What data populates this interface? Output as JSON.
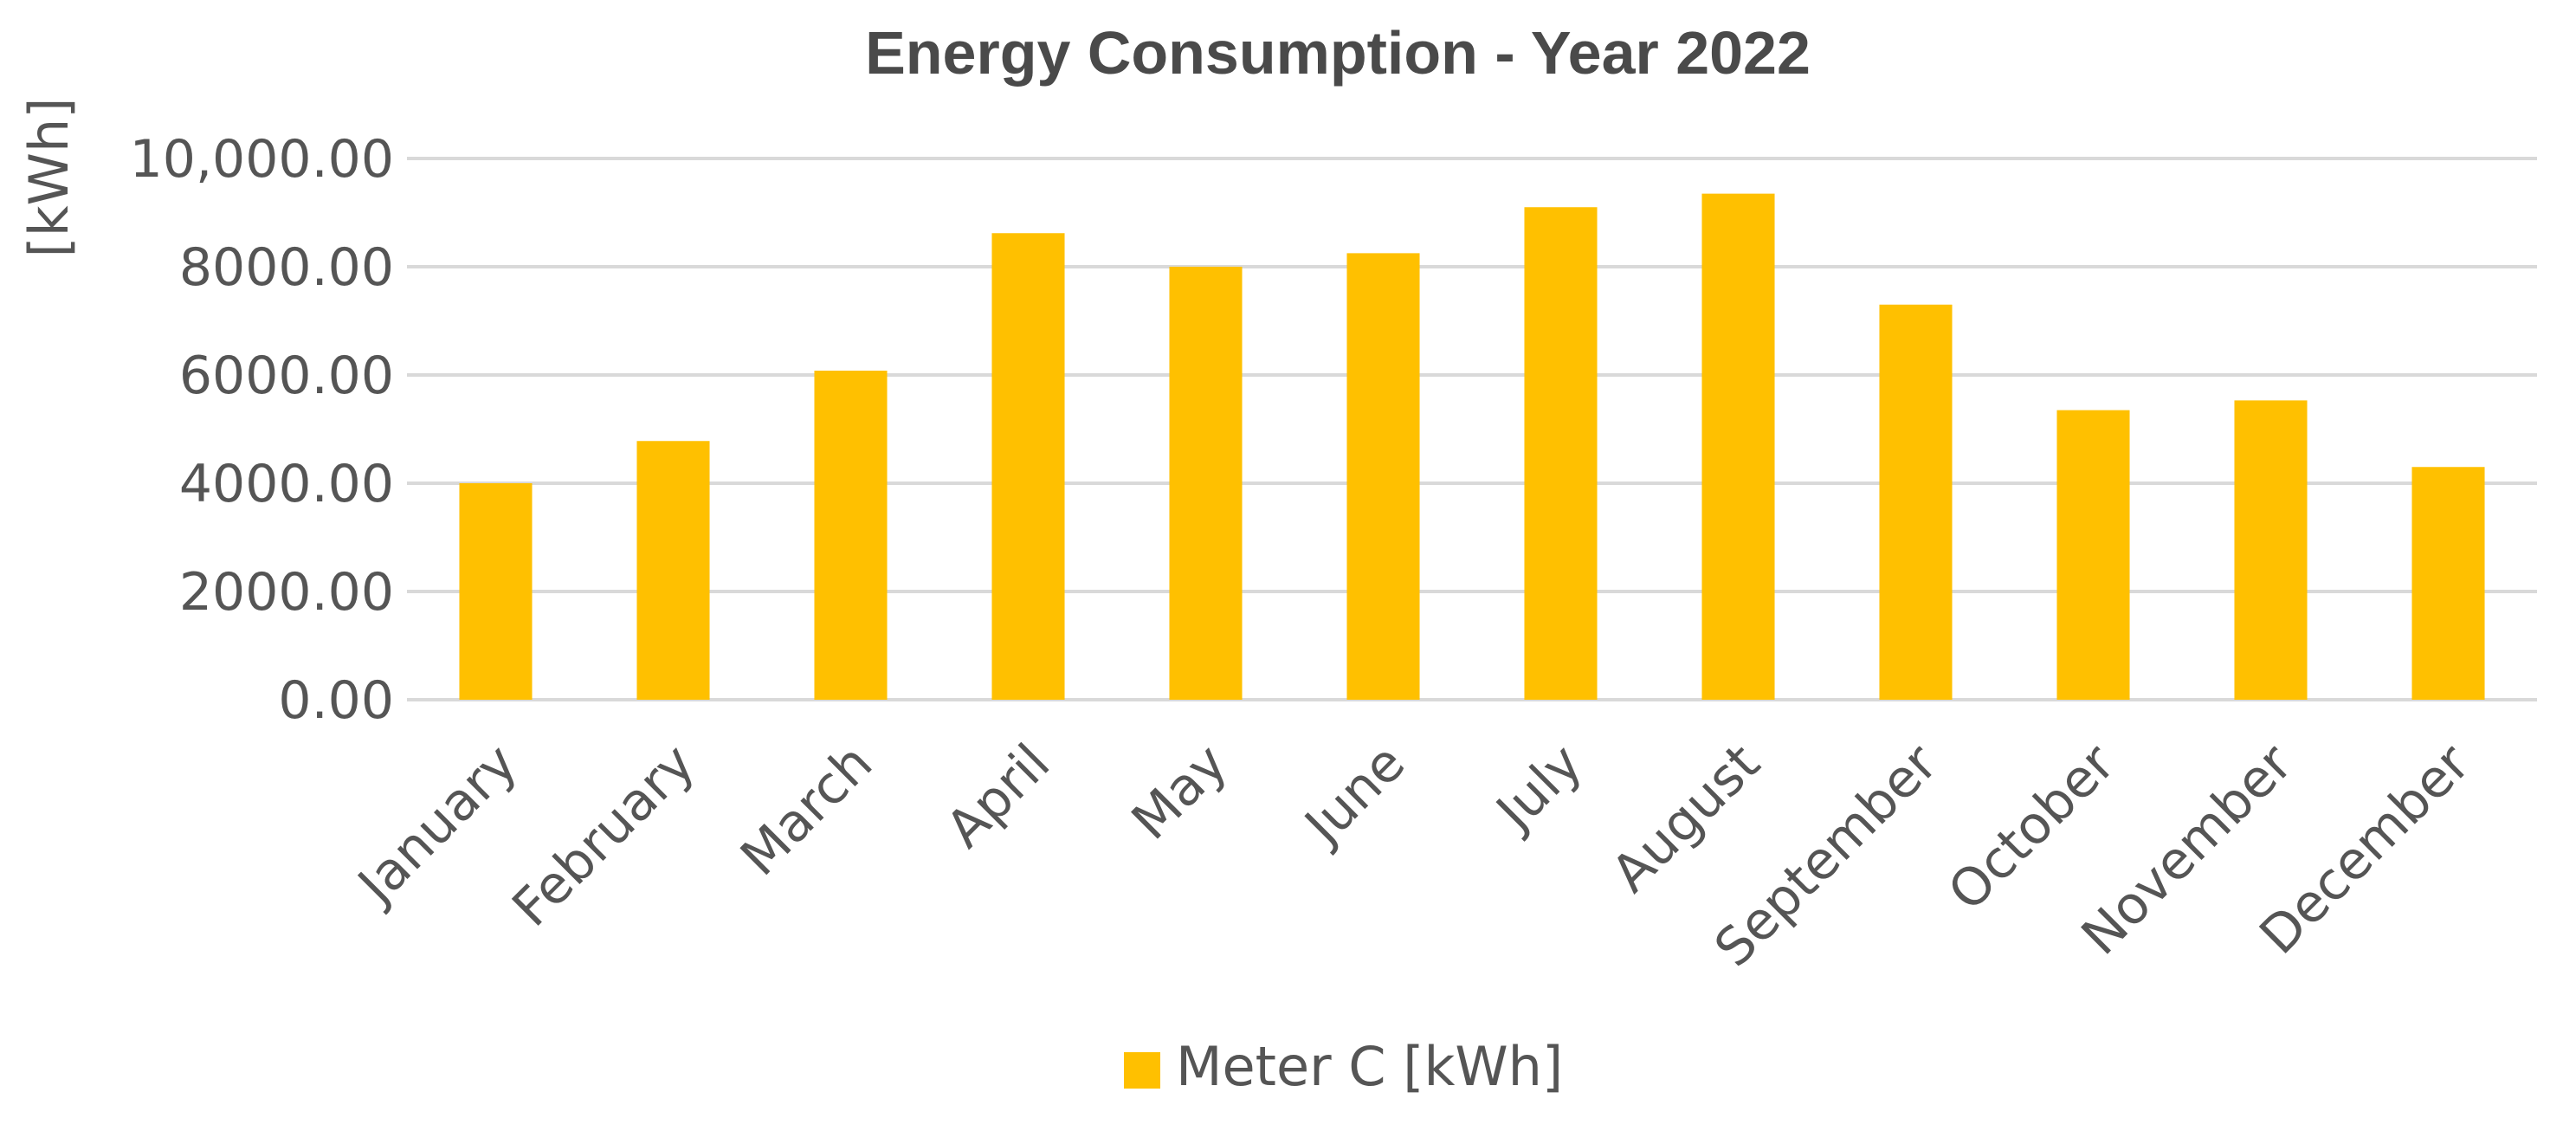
{
  "chart_data": {
    "type": "bar",
    "title": "Energy Consumption - Year 2022",
    "xlabel": "",
    "ylabel": "[kWh]",
    "ylim": [
      0,
      10000
    ],
    "yticks": [
      0,
      2000,
      4000,
      6000,
      8000,
      10000
    ],
    "ytick_labels": [
      "0.00",
      "2000.00",
      "4000.00",
      "6000.00",
      "8000.00",
      "10,000.00"
    ],
    "grid": true,
    "legend_position": "bottom",
    "categories": [
      "January",
      "February",
      "March",
      "April",
      "May",
      "June",
      "July",
      "August",
      "September",
      "October",
      "November",
      "December"
    ],
    "series": [
      {
        "name": "Meter C [kWh]",
        "color": "#FFC000",
        "values": [
          4000,
          4780,
          6080,
          8620,
          8000,
          8250,
          9100,
          9350,
          7300,
          5350,
          5530,
          4300
        ]
      }
    ]
  }
}
